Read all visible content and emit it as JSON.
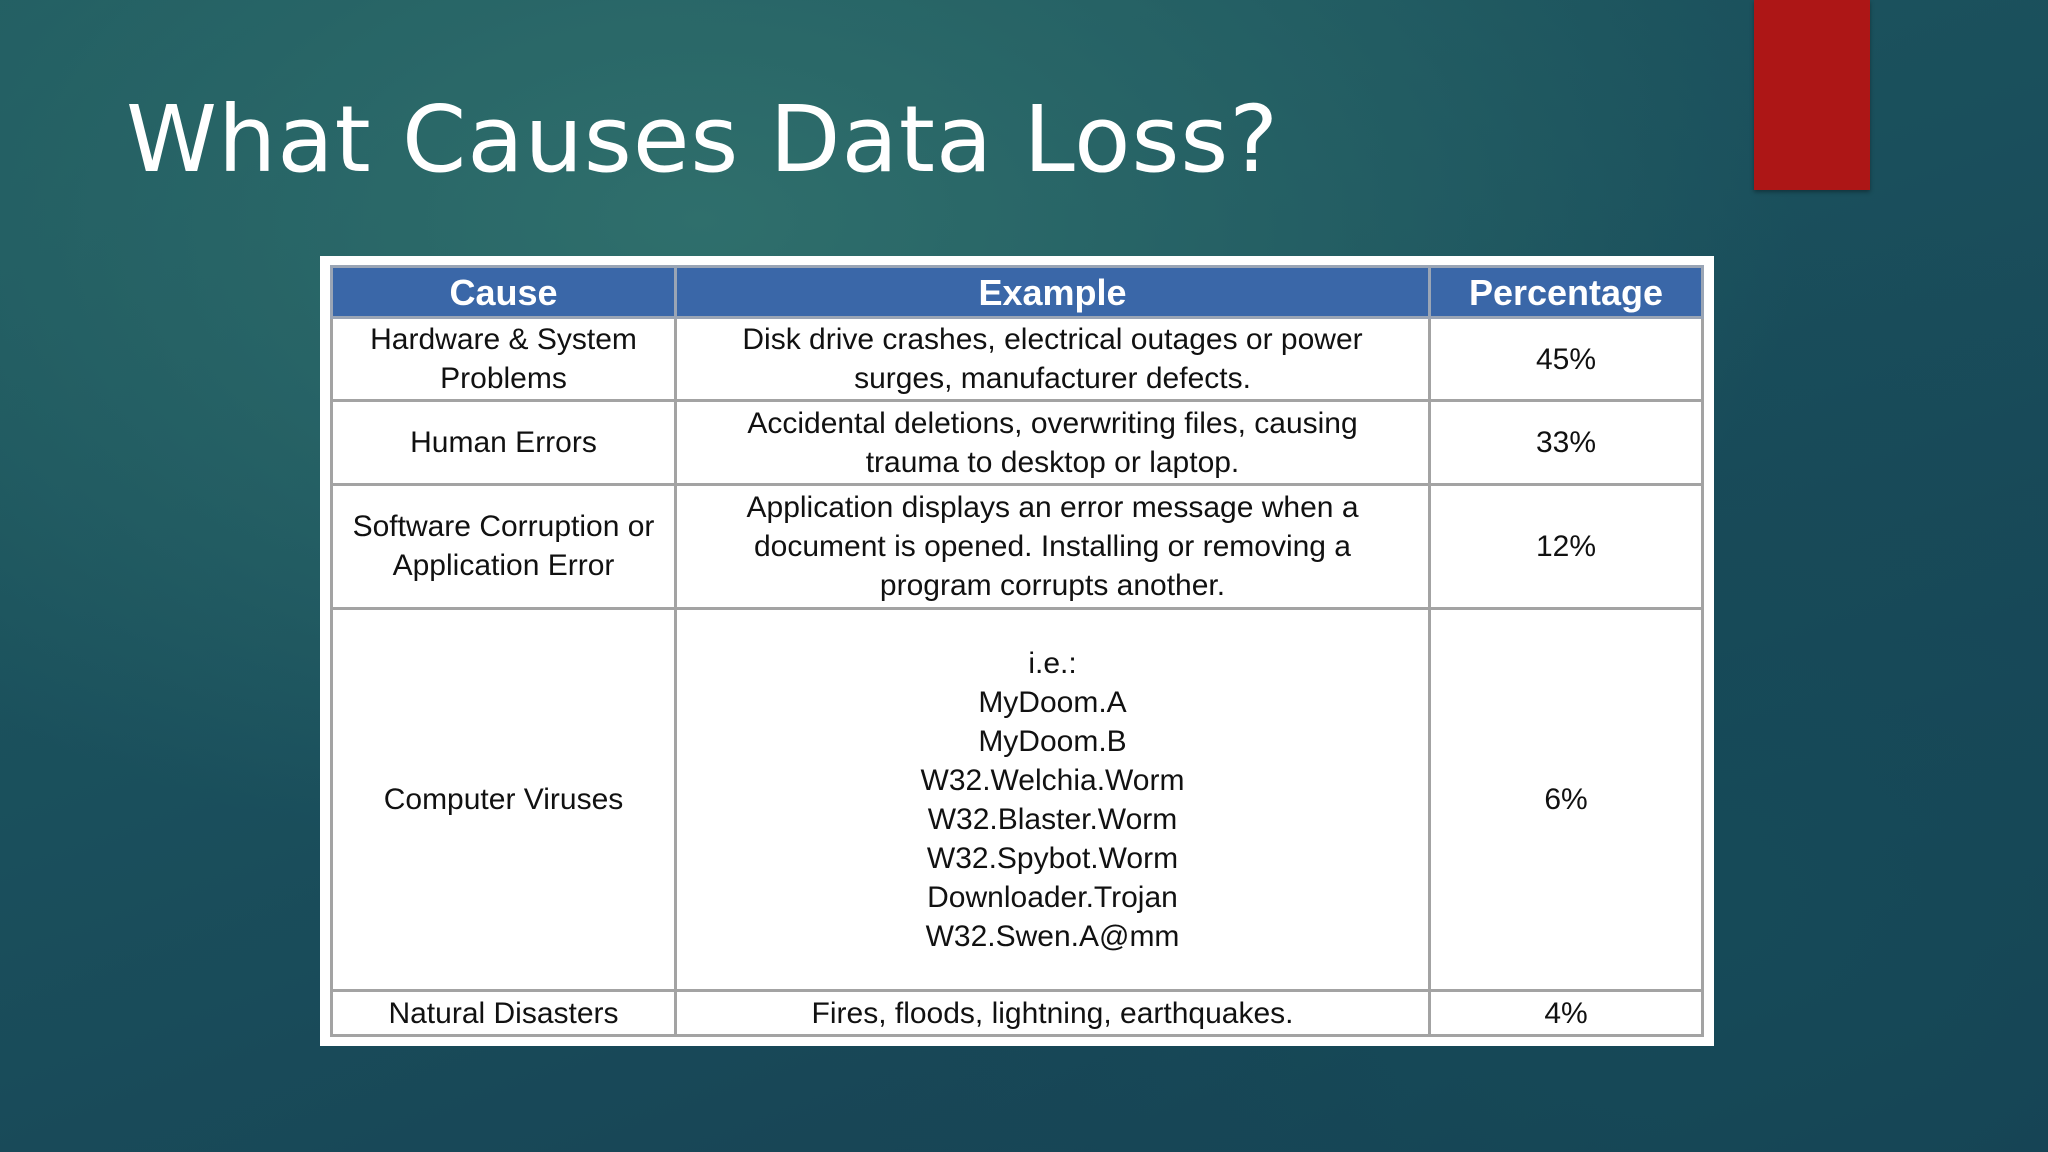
{
  "slide": {
    "title": "What Causes Data Loss?",
    "accent_color": "#ad1616"
  },
  "table": {
    "header_color": "#3a67a8",
    "headers": {
      "cause": "Cause",
      "example": "Example",
      "percentage": "Percentage"
    },
    "rows": [
      {
        "cause": "Hardware & System Problems",
        "example_lines": [
          "Disk drive crashes, electrical outages or power",
          "surges, manufacturer defects."
        ],
        "percentage": "45%"
      },
      {
        "cause": "Human Errors",
        "example_lines": [
          "Accidental deletions, overwriting files, causing",
          "trauma to desktop or laptop."
        ],
        "percentage": "33%"
      },
      {
        "cause": "Software Corruption or Application Error",
        "example_lines": [
          "Application displays an error message when a",
          "document is opened. Installing or removing a",
          "program corrupts another."
        ],
        "percentage": "12%"
      },
      {
        "cause": "Computer Viruses",
        "example_lines": [
          "i.e.:",
          "MyDoom.A",
          "MyDoom.B",
          "W32.Welchia.Worm",
          "W32.Blaster.Worm",
          "W32.Spybot.Worm",
          "Downloader.Trojan",
          "W32.Swen.A@mm"
        ],
        "percentage": "6%"
      },
      {
        "cause": "Natural Disasters",
        "example_lines": [
          "Fires, floods, lightning, earthquakes."
        ],
        "percentage": "4%"
      }
    ]
  }
}
